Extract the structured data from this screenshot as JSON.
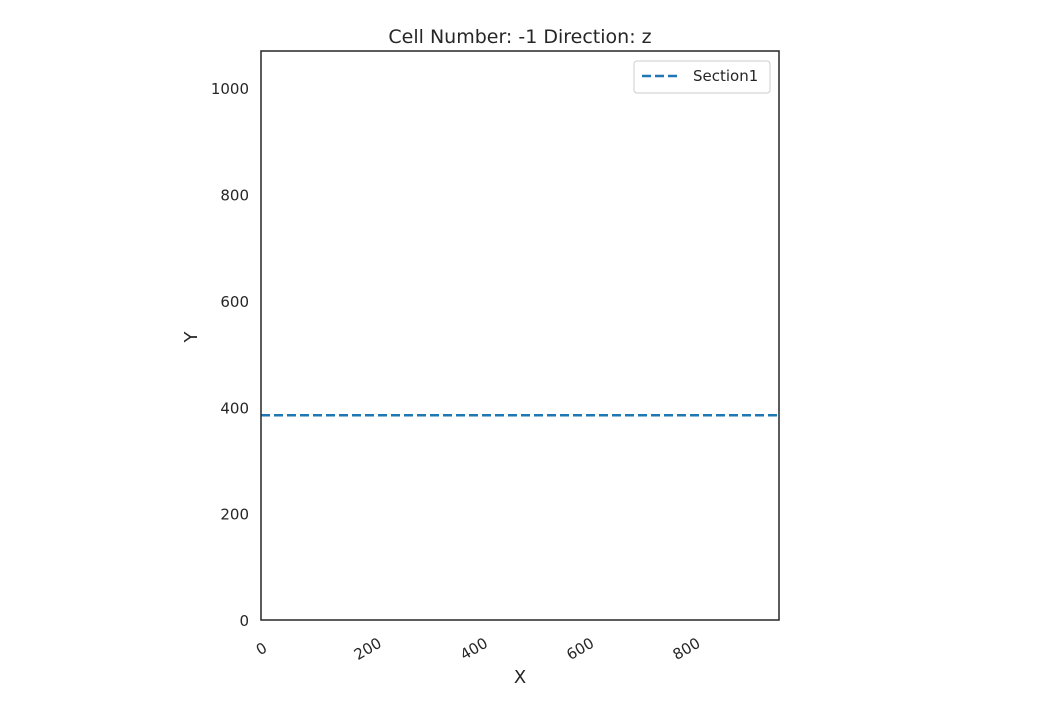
{
  "chart_data": {
    "type": "line",
    "title": "Cell Number: -1 Direction: z",
    "xlabel": "X",
    "ylabel": "Y",
    "xlim": [
      0,
      975
    ],
    "ylim": [
      0,
      1070
    ],
    "xticks": [
      0,
      200,
      400,
      600,
      800
    ],
    "yticks": [
      0,
      200,
      400,
      600,
      800,
      1000
    ],
    "xtick_labels": [
      "0",
      "200",
      "400",
      "600",
      "800"
    ],
    "ytick_labels": [
      "0",
      "200",
      "400",
      "600",
      "800",
      "1000"
    ],
    "grid": false,
    "legend_position": "top-right",
    "series": [
      {
        "name": "Section1",
        "color": "#1f77b4",
        "linestyle": "dashed",
        "x": [
          0,
          975
        ],
        "y": [
          385,
          385
        ]
      }
    ]
  }
}
